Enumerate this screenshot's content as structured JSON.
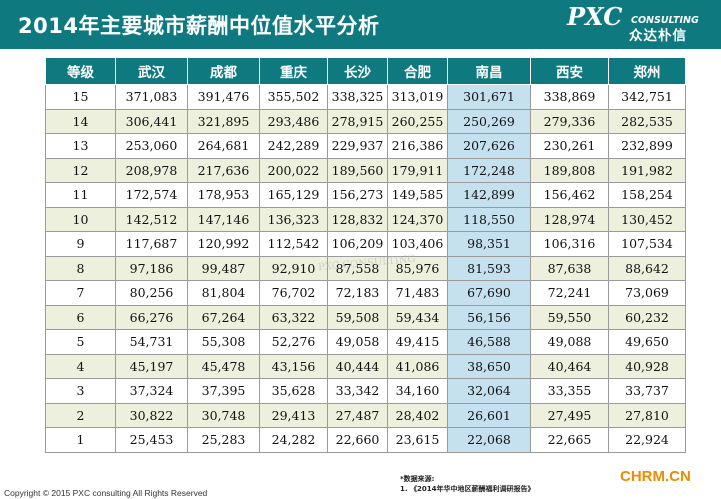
{
  "header": {
    "title": "2014年主要城市薪酬中位值水平分析",
    "logo_main": "PXC",
    "logo_sub": "CONSULTING",
    "logo_cn": "众达朴信"
  },
  "table": {
    "columns": [
      "等级",
      "武汉",
      "成都",
      "重庆",
      "长沙",
      "合肥",
      "南昌",
      "西安",
      "郑州"
    ],
    "highlight_column": "南昌",
    "rows": [
      [
        "15",
        "371,083",
        "391,476",
        "355,502",
        "338,325",
        "313,019",
        "301,671",
        "338,869",
        "342,751"
      ],
      [
        "14",
        "306,441",
        "321,895",
        "293,486",
        "278,915",
        "260,255",
        "250,269",
        "279,336",
        "282,535"
      ],
      [
        "13",
        "253,060",
        "264,681",
        "242,289",
        "229,937",
        "216,386",
        "207,626",
        "230,261",
        "232,899"
      ],
      [
        "12",
        "208,978",
        "217,636",
        "200,022",
        "189,560",
        "179,911",
        "172,248",
        "189,808",
        "191,982"
      ],
      [
        "11",
        "172,574",
        "178,953",
        "165,129",
        "156,273",
        "149,585",
        "142,899",
        "156,462",
        "158,254"
      ],
      [
        "10",
        "142,512",
        "147,146",
        "136,323",
        "128,832",
        "124,370",
        "118,550",
        "128,974",
        "130,452"
      ],
      [
        "9",
        "117,687",
        "120,992",
        "112,542",
        "106,209",
        "103,406",
        "98,351",
        "106,316",
        "107,534"
      ],
      [
        "8",
        "97,186",
        "99,487",
        "92,910",
        "87,558",
        "85,976",
        "81,593",
        "87,638",
        "88,642"
      ],
      [
        "7",
        "80,256",
        "81,804",
        "76,702",
        "72,183",
        "71,483",
        "67,690",
        "72,241",
        "73,069"
      ],
      [
        "6",
        "66,276",
        "67,264",
        "63,322",
        "59,508",
        "59,434",
        "56,156",
        "59,550",
        "60,232"
      ],
      [
        "5",
        "54,731",
        "55,308",
        "52,276",
        "49,058",
        "49,415",
        "46,588",
        "49,088",
        "49,650"
      ],
      [
        "4",
        "45,197",
        "45,478",
        "43,156",
        "40,444",
        "41,086",
        "38,650",
        "40,464",
        "40,928"
      ],
      [
        "3",
        "37,324",
        "37,395",
        "35,628",
        "33,342",
        "34,160",
        "32,064",
        "33,355",
        "33,737"
      ],
      [
        "2",
        "30,822",
        "30,748",
        "29,413",
        "27,487",
        "28,402",
        "26,601",
        "27,495",
        "27,810"
      ],
      [
        "1",
        "25,453",
        "25,283",
        "24,282",
        "22,660",
        "23,615",
        "22,068",
        "22,665",
        "22,924"
      ]
    ]
  },
  "footer": {
    "source_label": "*数据来源:",
    "source_item": "1.    《2014年华中地区薪酬福利调研报告》",
    "copyright": "Copyright © 2015  PXC consulting All Rights Reserved",
    "site": "CHRM.CN"
  },
  "watermark": "PXC CONSULTING",
  "colors": {
    "header_bg": "#0e7a80",
    "row_alt": "#ecf0dc",
    "highlight": "#c5e1ef",
    "site": "#f08a00"
  }
}
